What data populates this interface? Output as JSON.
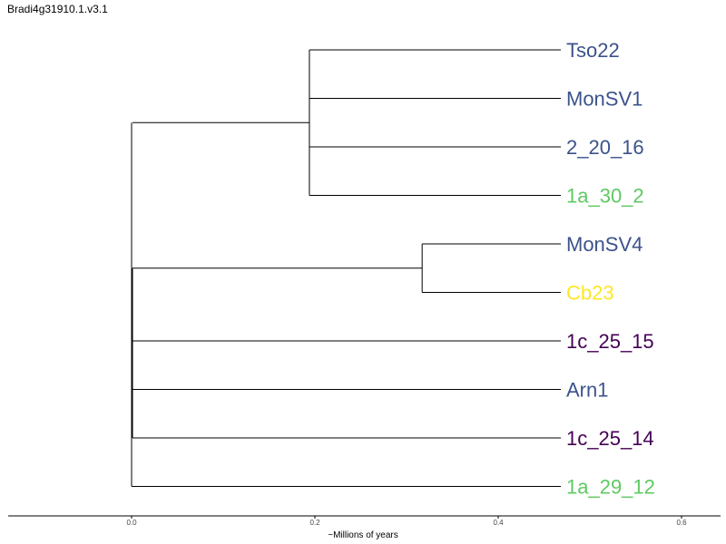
{
  "title": "Bradi4g31910.1.v3.1",
  "axis": {
    "label": "~Millions of years",
    "ticks": [
      "0.0",
      "0.2",
      "0.4",
      "0.6"
    ]
  },
  "tree": {
    "leaves": [
      {
        "name": "Tso22",
        "color": "#3b528b"
      },
      {
        "name": "MonSV1",
        "color": "#3b528b"
      },
      {
        "name": "2_20_16",
        "color": "#3b528b"
      },
      {
        "name": "1a_30_2",
        "color": "#5ec962"
      },
      {
        "name": "MonSV4",
        "color": "#3b528b"
      },
      {
        "name": "Cb23",
        "color": "#fde725"
      },
      {
        "name": "1c_25_15",
        "color": "#440154"
      },
      {
        "name": "Arn1",
        "color": "#3b528b"
      },
      {
        "name": "1c_25_14",
        "color": "#440154"
      },
      {
        "name": "1a_29_12",
        "color": "#5ec962"
      }
    ],
    "clades": [
      {
        "depth": 0.194,
        "leaves": [
          "Tso22",
          "MonSV1",
          "2_20_16",
          "1a_30_2"
        ]
      },
      {
        "depth": 0.317,
        "leaves": [
          "MonSV4",
          "Cb23"
        ]
      }
    ]
  }
}
